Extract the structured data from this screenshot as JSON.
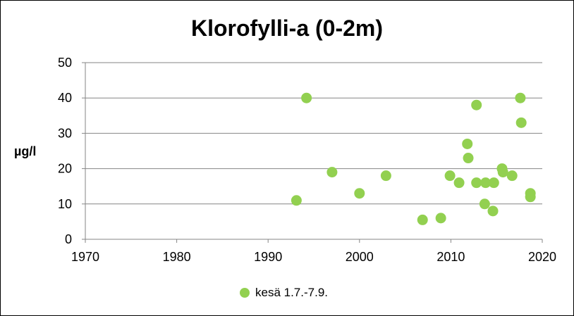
{
  "chart_data": {
    "type": "scatter",
    "title": "Klorofylli-a (0-2m)",
    "xlabel": "",
    "ylabel": "µg/l",
    "xlim": [
      1970,
      2020
    ],
    "ylim": [
      0,
      50
    ],
    "x_ticks": [
      1970,
      1980,
      1990,
      2000,
      2010,
      2020
    ],
    "y_ticks": [
      0,
      10,
      20,
      30,
      40,
      50
    ],
    "grid": "horizontal",
    "legend_position": "bottom",
    "series": [
      {
        "name": "kesä 1.7.-7.9.",
        "color": "#92d050",
        "points": [
          {
            "x": 1993.1,
            "y": 11
          },
          {
            "x": 1994.2,
            "y": 40
          },
          {
            "x": 1997.0,
            "y": 19
          },
          {
            "x": 2000.0,
            "y": 13
          },
          {
            "x": 2002.9,
            "y": 18
          },
          {
            "x": 2006.9,
            "y": 5.5
          },
          {
            "x": 2008.9,
            "y": 6
          },
          {
            "x": 2009.9,
            "y": 18
          },
          {
            "x": 2010.9,
            "y": 16
          },
          {
            "x": 2011.8,
            "y": 27
          },
          {
            "x": 2011.9,
            "y": 23
          },
          {
            "x": 2012.8,
            "y": 38
          },
          {
            "x": 2012.8,
            "y": 16
          },
          {
            "x": 2013.7,
            "y": 10
          },
          {
            "x": 2013.8,
            "y": 16
          },
          {
            "x": 2014.6,
            "y": 8
          },
          {
            "x": 2014.7,
            "y": 16
          },
          {
            "x": 2015.6,
            "y": 20
          },
          {
            "x": 2015.7,
            "y": 19
          },
          {
            "x": 2016.7,
            "y": 18
          },
          {
            "x": 2017.6,
            "y": 40
          },
          {
            "x": 2017.7,
            "y": 33
          },
          {
            "x": 2018.7,
            "y": 13
          },
          {
            "x": 2018.7,
            "y": 12
          }
        ]
      }
    ]
  }
}
